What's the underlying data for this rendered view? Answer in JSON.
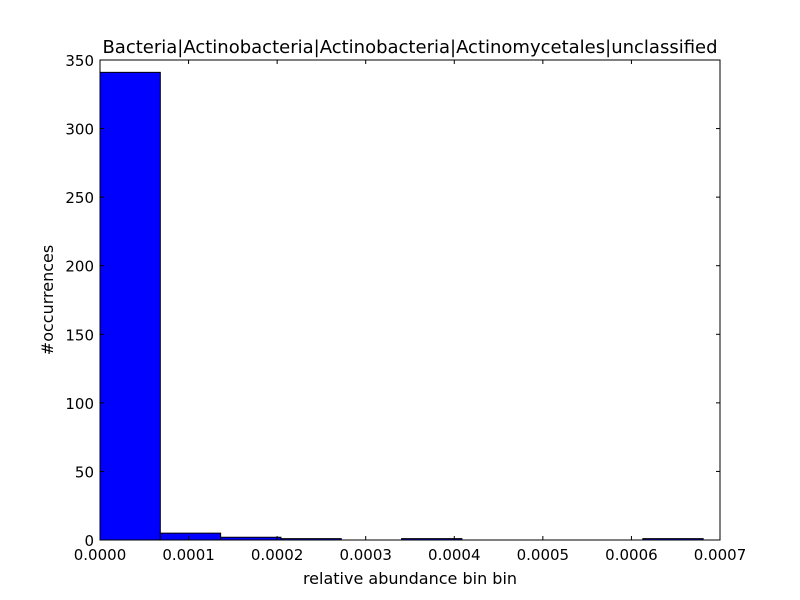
{
  "chart_data": {
    "type": "bar",
    "title": "Bacteria|Actinobacteria|Actinobacteria|Actinomycetales|unclassified",
    "xlabel": "relative abundance bin bin",
    "ylabel": "#occurrences",
    "xlim": [
      0,
      0.0007
    ],
    "ylim": [
      0,
      350
    ],
    "x_ticks": [
      "0.0000",
      "0.0001",
      "0.0002",
      "0.0003",
      "0.0004",
      "0.0005",
      "0.0006",
      "0.0007"
    ],
    "y_ticks": [
      "0",
      "50",
      "100",
      "150",
      "200",
      "250",
      "300",
      "350"
    ],
    "grid": false,
    "bar_color": "#0000ff",
    "bins": [
      {
        "x0": 0.0,
        "x1": 6.81e-05,
        "count": 341
      },
      {
        "x0": 6.81e-05,
        "x1": 0.0001362,
        "count": 5
      },
      {
        "x0": 0.0001362,
        "x1": 0.0002043,
        "count": 2
      },
      {
        "x0": 0.0002043,
        "x1": 0.0002724,
        "count": 1
      },
      {
        "x0": 0.0002724,
        "x1": 0.0003405,
        "count": 0
      },
      {
        "x0": 0.0003405,
        "x1": 0.0004086,
        "count": 1
      },
      {
        "x0": 0.0004086,
        "x1": 0.0004767,
        "count": 0
      },
      {
        "x0": 0.0004767,
        "x1": 0.0005448,
        "count": 0
      },
      {
        "x0": 0.0005448,
        "x1": 0.0006129,
        "count": 0
      },
      {
        "x0": 0.0006129,
        "x1": 0.000681,
        "count": 1
      }
    ]
  }
}
